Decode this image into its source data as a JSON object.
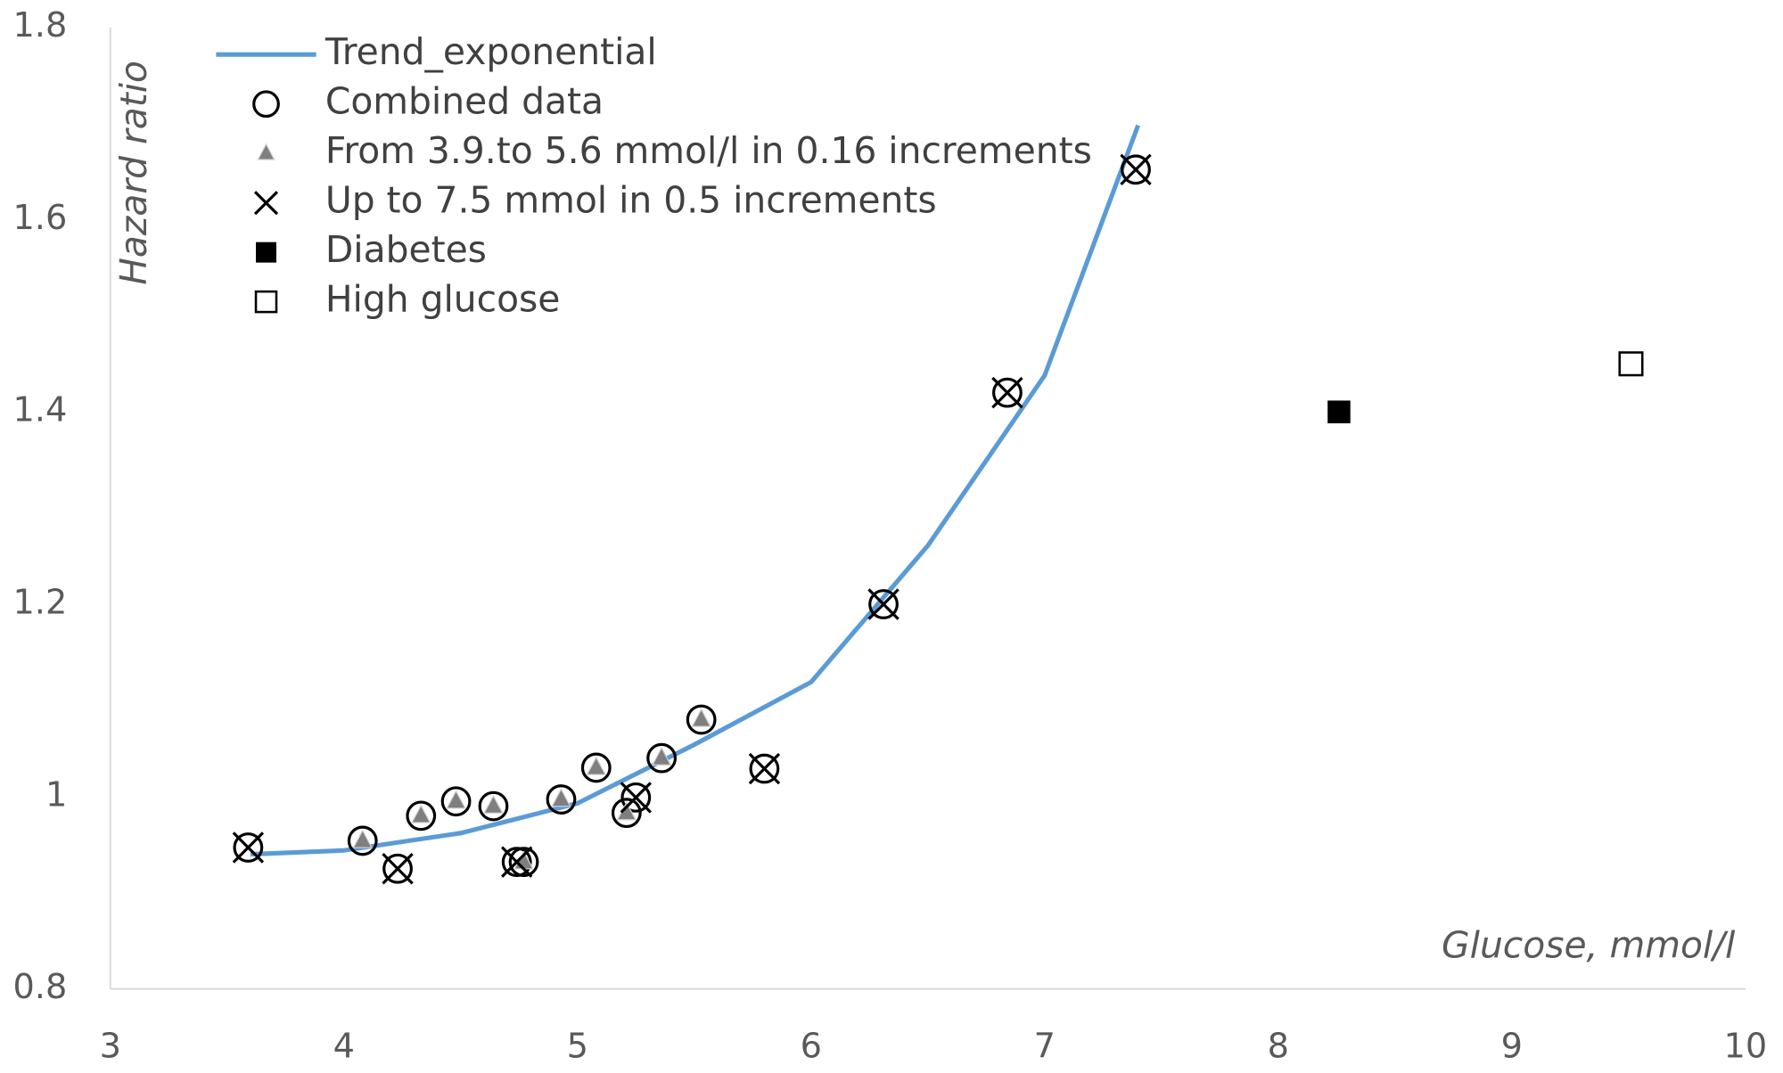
{
  "chart_data": {
    "type": "scatter",
    "xlabel": "Glucose, mmol/l",
    "ylabel": "Hazard ratio",
    "xlim": [
      3,
      10
    ],
    "xticks": [
      3,
      4,
      5,
      6,
      7,
      8,
      9,
      10
    ],
    "ylim": [
      0.8,
      1.8
    ],
    "yticks": [
      0.8,
      1,
      1.2,
      1.4,
      1.6,
      1.8
    ],
    "grid": false,
    "legend": "top-left",
    "series": [
      {
        "name": "Trend_exponential",
        "color": "#5b9bd5",
        "marker": "line",
        "x": [
          3.6,
          4,
          4.5,
          5,
          5.5,
          6,
          6.5,
          7,
          7.4
        ],
        "values": [
          0.94,
          0.944,
          0.962,
          0.993,
          1.054,
          1.119,
          1.261,
          1.438,
          1.698
        ]
      },
      {
        "name": "Combined data",
        "color": "#000000",
        "marker": "open-circle",
        "x": [
          3.59,
          4.08,
          4.23,
          4.33,
          4.48,
          4.64,
          4.74,
          4.77,
          4.93,
          5.08,
          5.21,
          5.25,
          5.36,
          5.53,
          5.8,
          6.31,
          6.84,
          7.39
        ],
        "values": [
          0.947,
          0.954,
          0.925,
          0.98,
          0.995,
          0.99,
          0.932,
          0.932,
          0.997,
          1.03,
          0.983,
          0.999,
          1.04,
          1.08,
          1.029,
          1.2,
          1.42,
          1.652
        ]
      },
      {
        "name": "From 3.9.to 5.6 mmol/l in 0.16 increments",
        "color": "#7f7f7f",
        "marker": "triangle",
        "x": [
          4.08,
          4.33,
          4.48,
          4.64,
          4.77,
          4.93,
          5.08,
          5.21,
          5.36,
          5.53
        ],
        "values": [
          0.954,
          0.98,
          0.995,
          0.99,
          0.932,
          0.997,
          1.03,
          0.983,
          1.04,
          1.08
        ]
      },
      {
        "name": "Up to 7.5 mmol in 0.5 increments",
        "color": "#000000",
        "marker": "cross",
        "x": [
          3.59,
          4.23,
          4.74,
          5.25,
          5.8,
          6.31,
          6.84,
          7.39
        ],
        "values": [
          0.947,
          0.925,
          0.932,
          0.999,
          1.029,
          1.2,
          1.42,
          1.652
        ]
      },
      {
        "name": "Diabetes",
        "color": "#000000",
        "marker": "filled-square",
        "x": [
          8.26
        ],
        "values": [
          1.4
        ]
      },
      {
        "name": "High glucose",
        "color": "#000000",
        "marker": "open-square",
        "x": [
          9.51
        ],
        "values": [
          1.45
        ]
      }
    ]
  }
}
